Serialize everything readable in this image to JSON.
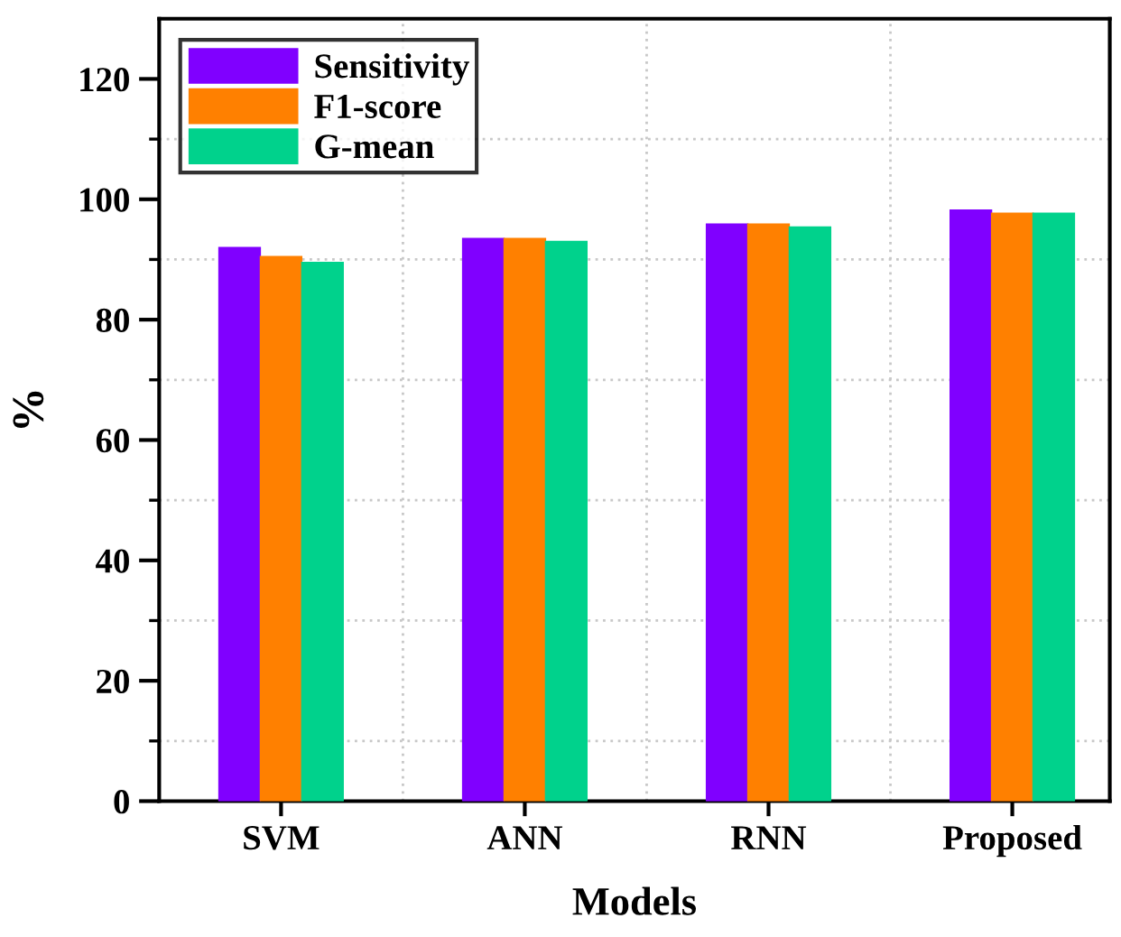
{
  "chart_data": {
    "type": "bar",
    "xlabel": "Models",
    "ylabel": "%",
    "categories": [
      "SVM",
      "ANN",
      "RNN",
      "Proposed"
    ],
    "series": [
      {
        "name": "Sensitivity",
        "color": "#8000ff",
        "values": [
          92,
          93.5,
          95.9,
          98.2
        ]
      },
      {
        "name": "F1-score",
        "color": "#ff8000",
        "values": [
          90.5,
          93.5,
          95.9,
          97.7
        ]
      },
      {
        "name": "G-mean",
        "color": "#00d28c",
        "values": [
          89.5,
          93,
          95.4,
          97.7
        ]
      }
    ],
    "ylim": [
      0,
      130
    ],
    "yticks": [
      0,
      {
        "value": 10,
        "label": null
      },
      20,
      {
        "value": 30,
        "label": null
      },
      40,
      {
        "value": 50,
        "label": null
      },
      60,
      {
        "value": 70,
        "label": null
      },
      80,
      {
        "value": 90,
        "label": null
      },
      100,
      {
        "value": 110,
        "label": null
      },
      120
    ],
    "grid": true,
    "legend": "top left"
  }
}
